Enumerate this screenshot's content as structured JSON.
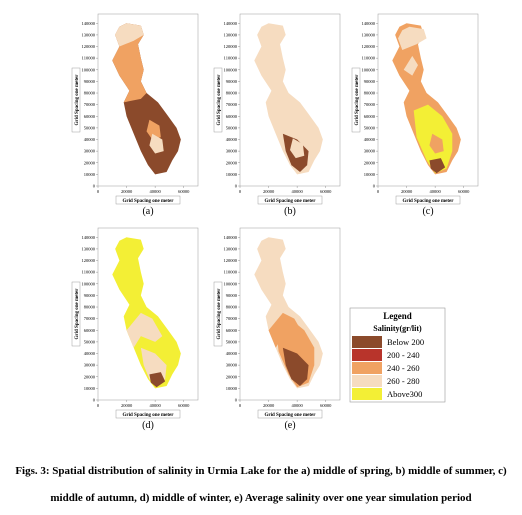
{
  "axes": {
    "xlabel": "Grid Spacing one meter",
    "ylabel": "Grid Spacing one meter",
    "xticks": [
      0,
      20000,
      40000,
      60000
    ],
    "yticks": [
      0,
      10000,
      20000,
      30000,
      40000,
      50000,
      60000,
      70000,
      80000,
      90000,
      100000,
      110000,
      120000,
      130000,
      140000
    ]
  },
  "panels": [
    {
      "label": "(a)"
    },
    {
      "label": "(b)"
    },
    {
      "label": "(c)"
    },
    {
      "label": "(d)"
    },
    {
      "label": "(e)"
    }
  ],
  "legend": {
    "title": "Legend",
    "subtitle": "Salinity(gr/lit)",
    "items": [
      {
        "label": "Below 200",
        "color": "#8b4a2b"
      },
      {
        "label": "200 - 240",
        "color": "#b8342b"
      },
      {
        "label": "240 - 260",
        "color": "#f0a262"
      },
      {
        "label": "260 - 280",
        "color": "#f6dcc0"
      },
      {
        "label": "Above300",
        "color": "#f3ef35"
      }
    ]
  },
  "caption": "Figs. 3: Spatial distribution of salinity in Urmia Lake for the a) middle of spring, b) middle of summer, c) middle of autumn, d) middle of winter, e) Average salinity over one year simulation period"
}
